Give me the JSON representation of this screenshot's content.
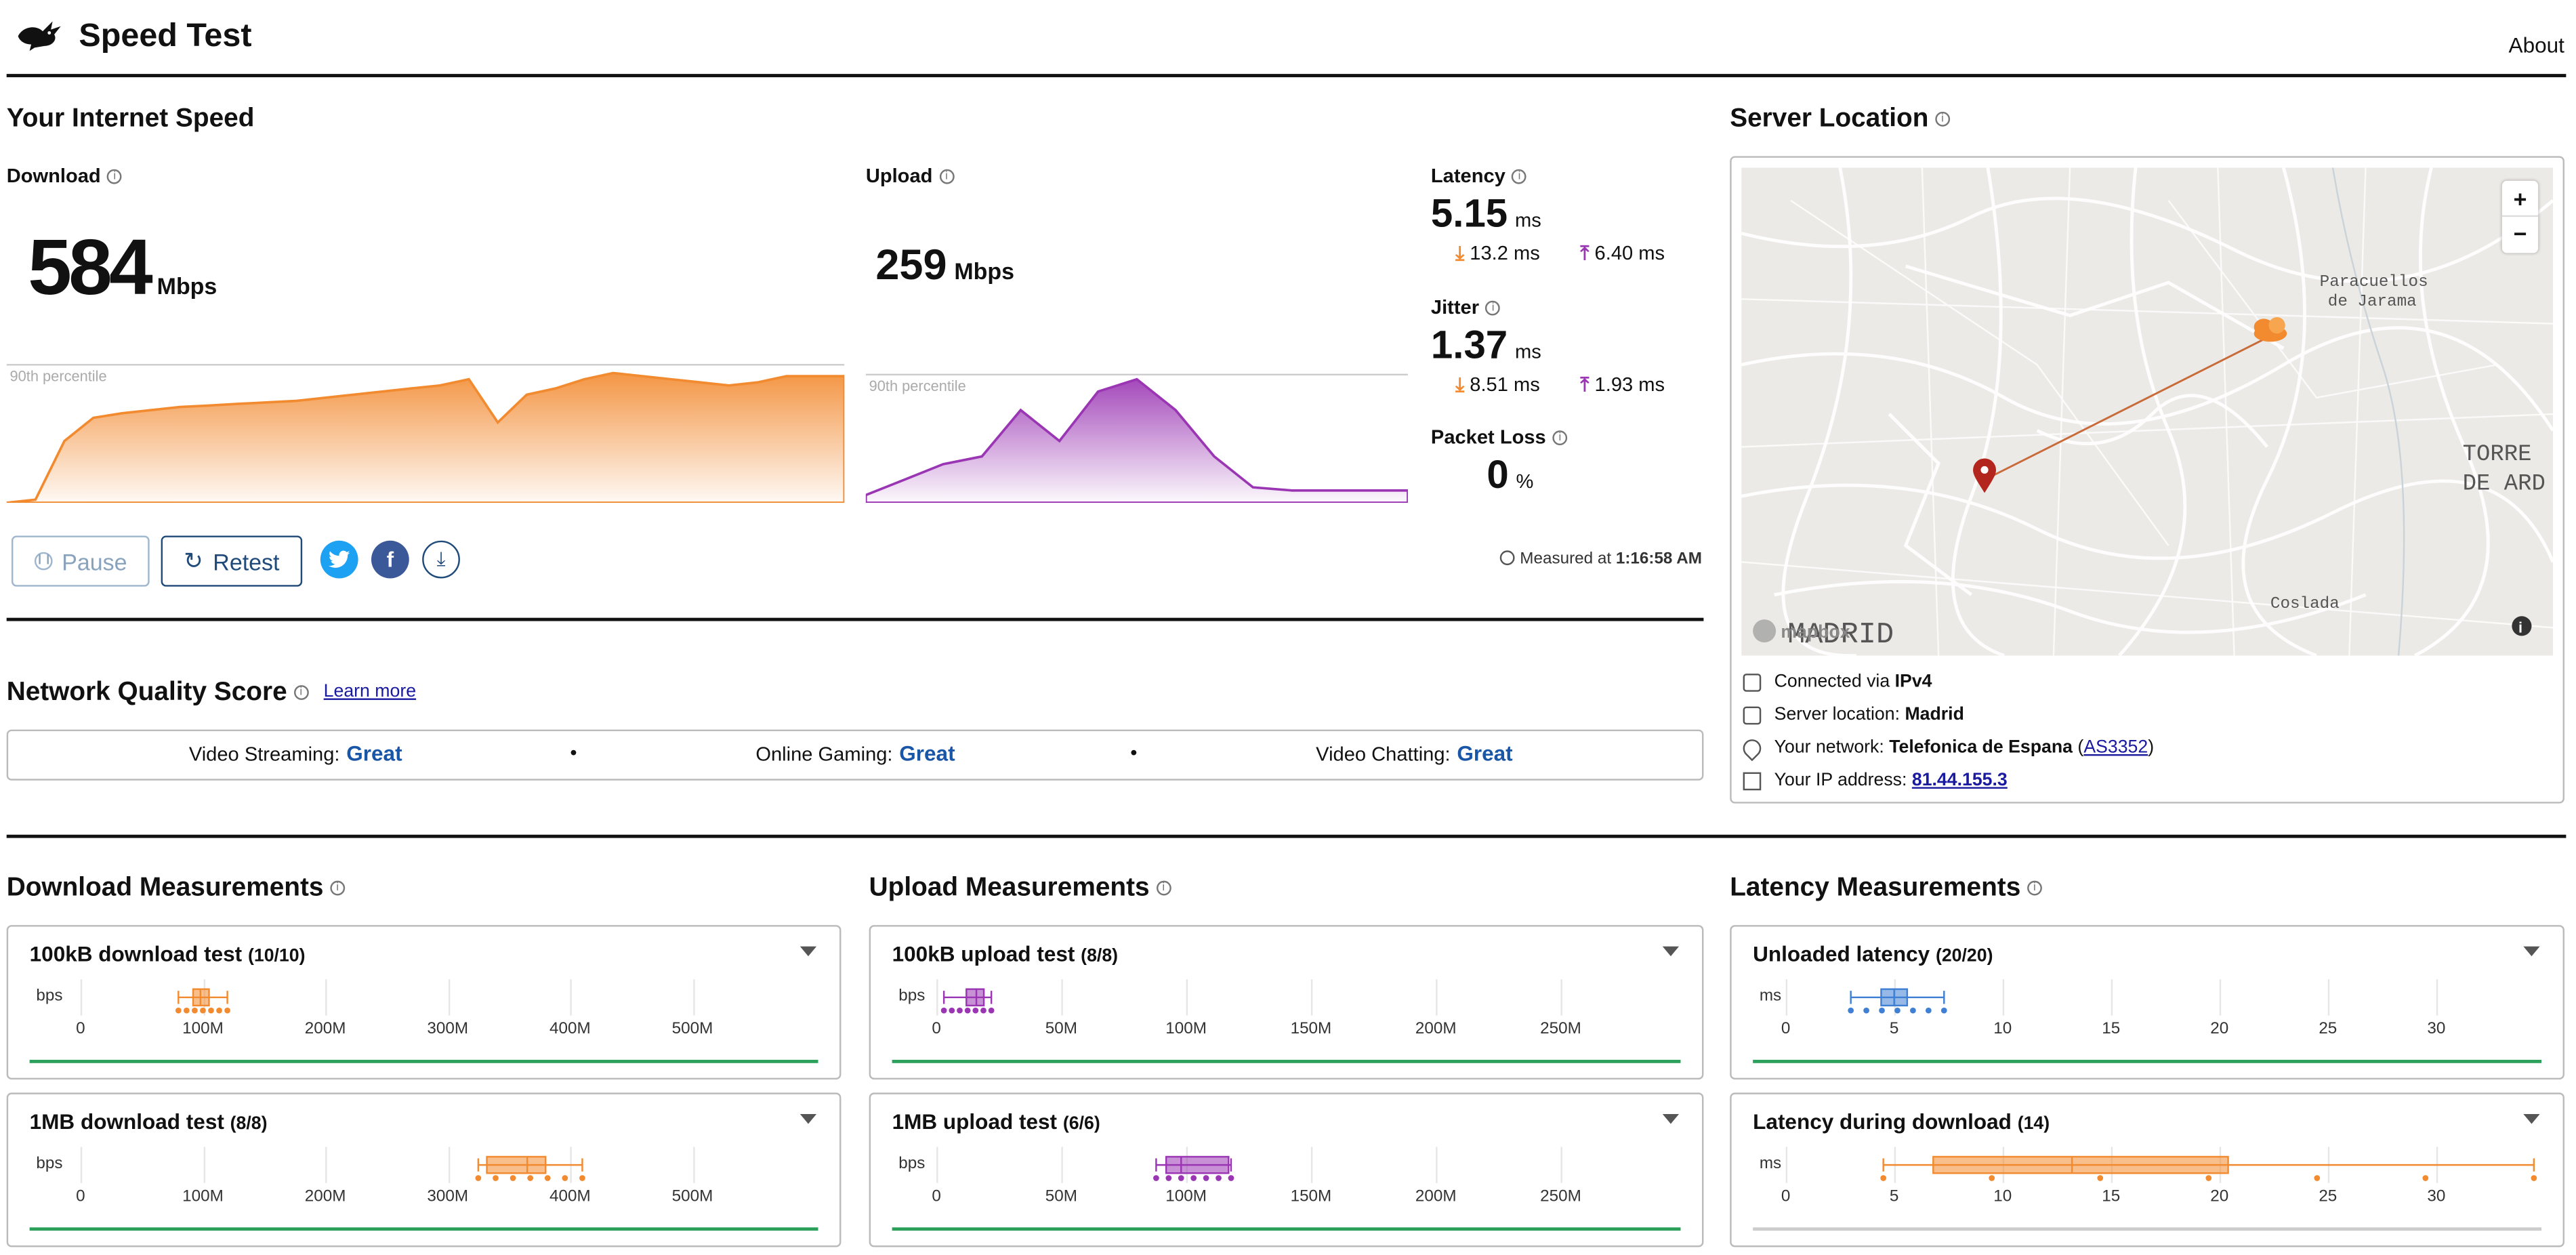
{
  "header": {
    "app_title": "Speed Test",
    "about": "About"
  },
  "speed": {
    "title": "Your Internet Speed",
    "download": {
      "label": "Download",
      "value": "584",
      "unit": "Mbps",
      "percentile": "90th percentile"
    },
    "upload": {
      "label": "Upload",
      "value": "259",
      "unit": "Mbps",
      "percentile": "90th percentile"
    },
    "latency": {
      "label": "Latency",
      "value": "5.15",
      "unit": "ms",
      "down": "13.2 ms",
      "up": "6.40 ms"
    },
    "jitter": {
      "label": "Jitter",
      "value": "1.37",
      "unit": "ms",
      "down": "8.51 ms",
      "up": "1.93 ms"
    },
    "packet_loss": {
      "label": "Packet Loss",
      "value": "0",
      "unit": "%"
    },
    "pause": "Pause",
    "retest": "Retest",
    "measured_prefix": "Measured at",
    "measured_time": "1:16:58 AM"
  },
  "server": {
    "title": "Server Location",
    "map_labels": {
      "paracuellos1": "Paracuellos",
      "paracuellos2": "de Jarama",
      "torre1": "TORRE",
      "torre2": "DE ARD",
      "coslada": "Coslada",
      "madrid": "MADRID",
      "mapbox": "mapbox"
    },
    "zoom_in": "+",
    "zoom_out": "−",
    "connected_prefix": "Connected via",
    "connected_value": "IPv4",
    "location_prefix": "Server location:",
    "location_value": "Madrid",
    "network_prefix": "Your network:",
    "network_value": "Telefonica de Espana",
    "network_as": "AS3352",
    "ip_prefix": "Your IP address:",
    "ip_value": "81.44.155.3"
  },
  "quality": {
    "title": "Network Quality Score",
    "learn_more": "Learn more",
    "streaming_label": "Video Streaming:",
    "streaming_value": "Great",
    "gaming_label": "Online Gaming:",
    "gaming_value": "Great",
    "chatting_label": "Video Chatting:",
    "chatting_value": "Great",
    "sep": "•"
  },
  "measurements": {
    "download_title": "Download Measurements",
    "upload_title": "Upload Measurements",
    "latency_title": "Latency Measurements",
    "dl100_title": "100kB download test",
    "dl100_count": "(10/10)",
    "dl1m_title": "1MB download test",
    "dl1m_count": "(8/8)",
    "ul100_title": "100kB upload test",
    "ul100_count": "(8/8)",
    "ul1m_title": "1MB upload test",
    "ul1m_count": "(6/6)",
    "lat_un_title": "Unloaded latency",
    "lat_un_count": "(20/20)",
    "lat_dl_title": "Latency during download",
    "lat_dl_count": "(14)",
    "bps": "bps",
    "ms": "ms",
    "dl_ticks": [
      "0",
      "100M",
      "200M",
      "300M",
      "400M",
      "500M"
    ],
    "ul_ticks": [
      "0",
      "50M",
      "100M",
      "150M",
      "200M",
      "250M"
    ],
    "lat_ticks": [
      "0",
      "5",
      "10",
      "15",
      "20",
      "25",
      "30"
    ]
  },
  "chart_data": [
    {
      "type": "area",
      "series": [
        {
          "values": [
            0,
            2,
            40,
            55,
            58,
            60,
            62,
            63,
            64,
            65,
            66,
            68,
            70,
            72,
            74,
            76,
            80,
            52,
            70,
            74,
            80,
            84,
            82,
            80,
            78,
            76,
            78,
            82,
            82,
            82
          ]
        }
      ],
      "ylim": [
        0,
        100
      ]
    },
    {
      "type": "area",
      "series": [
        {
          "values": [
            5,
            15,
            25,
            30,
            60,
            40,
            72,
            80,
            60,
            30,
            10,
            8,
            8,
            8,
            8
          ]
        }
      ],
      "ylim": [
        0,
        100
      ]
    },
    {
      "type": "box",
      "values_min": 80,
      "values_q1": 92,
      "values_median": 98,
      "values_q3": 105,
      "values_max": 120,
      "unit": "bps"
    },
    {
      "type": "box",
      "values_min": 325,
      "values_q1": 332,
      "values_median": 365,
      "values_q3": 380,
      "values_max": 410,
      "unit": "bps"
    },
    {
      "type": "box",
      "values_min": 3,
      "values_q1": 12,
      "values_median": 16,
      "values_q3": 19,
      "values_max": 22,
      "unit": "bps"
    },
    {
      "type": "box",
      "values_min": 88,
      "values_q1": 92,
      "values_median": 98,
      "values_q3": 117,
      "values_max": 118,
      "unit": "bps"
    },
    {
      "type": "box",
      "values_min": 3,
      "values_q1": 4.4,
      "values_median": 5.0,
      "values_q3": 5.6,
      "values_max": 7.3,
      "unit": "ms"
    },
    {
      "type": "box",
      "values_min": 4.5,
      "values_q1": 6.8,
      "values_median": 13.2,
      "values_q3": 20.4,
      "values_max": 34.5,
      "unit": "ms"
    }
  ],
  "colors": {
    "download": "#f28a30",
    "upload": "#9a35b3",
    "latency": "#3f7fd4",
    "great": "#1a56a7",
    "ok_bar": "#2aa05a"
  }
}
